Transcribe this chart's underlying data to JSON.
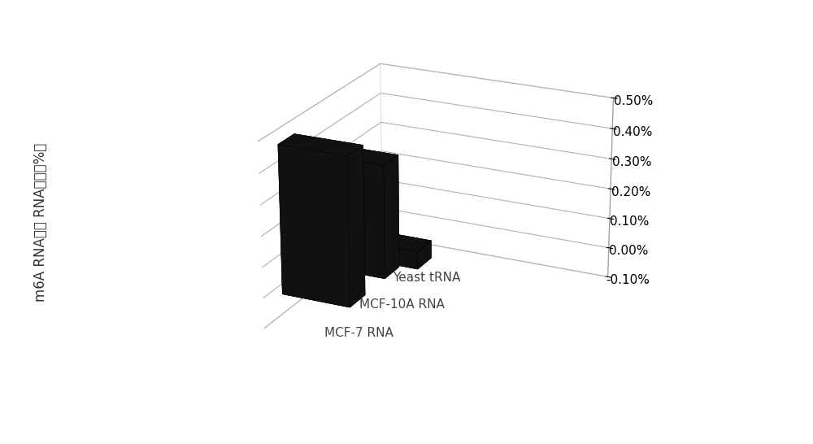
{
  "categories": [
    "MCF-7 RNA",
    "MCF-10A RNA",
    "Yeast tRNA"
  ],
  "values": [
    0.0048,
    0.0037,
    -0.0006
  ],
  "bar_color": "#111111",
  "ylabel": "m6A RNA占总 RNA比例（%）",
  "ylim": [
    -0.001,
    0.005
  ],
  "yticks": [
    -0.001,
    0.0,
    0.001,
    0.002,
    0.003,
    0.004,
    0.005
  ],
  "ytick_labels": [
    "-0.10%",
    "0.00%",
    "0.10%",
    "0.20%",
    "0.30%",
    "0.40%",
    "0.50%"
  ],
  "background_color": "#ffffff",
  "bar_width": 0.6,
  "bar_depth": 0.6,
  "ylabel_fontsize": 12,
  "tick_fontsize": 11,
  "xlabel_fontsize": 11,
  "elev": 22,
  "azim": -65
}
